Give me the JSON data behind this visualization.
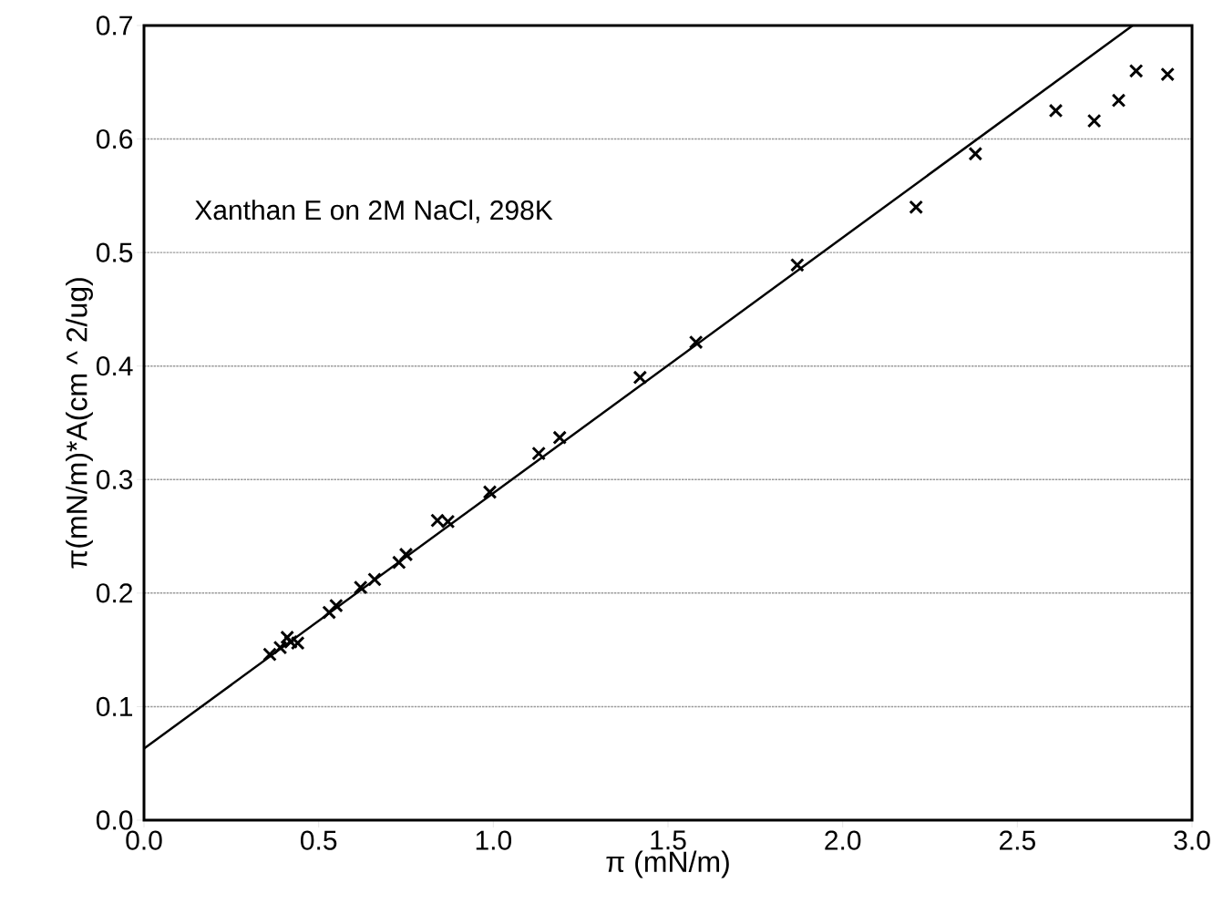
{
  "chart_data": {
    "type": "scatter",
    "xlabel": "π (mN/m)",
    "ylabel": "π(mN/m)*A(cm ^ 2/ug)",
    "annotations": [
      "Xanthan E on 2M NaCl, 298K"
    ],
    "xlim": [
      0,
      3.0
    ],
    "ylim": [
      0,
      0.7
    ],
    "xticks": [
      {
        "value": 0,
        "label": "0.0"
      },
      0.5,
      {
        "value": 1,
        "label": "1.0"
      },
      1.5,
      {
        "value": 2,
        "label": "2.0"
      },
      2.5,
      {
        "value": 3,
        "label": "3.0"
      }
    ],
    "yticks": [
      {
        "value": 0,
        "label": "0.0"
      },
      0.1,
      0.2,
      0.3,
      0.4,
      0.5,
      0.6,
      0.7
    ],
    "grid": "y",
    "series": [
      {
        "color": "#000000",
        "marker": "cross",
        "x": [
          0.36,
          0.39,
          0.41,
          0.42,
          0.44,
          0.53,
          0.55,
          0.62,
          0.66,
          0.73,
          0.75,
          0.84,
          0.87,
          0.99,
          1.13,
          1.19,
          1.42,
          1.58,
          1.87,
          2.21,
          2.38,
          2.61,
          2.72,
          2.79,
          2.84,
          2.93
        ],
        "values": [
          0.146,
          0.152,
          0.161,
          0.157,
          0.156,
          0.183,
          0.189,
          0.205,
          0.212,
          0.227,
          0.234,
          0.264,
          0.263,
          0.289,
          0.323,
          0.337,
          0.39,
          0.421,
          0.489,
          0.54,
          0.587,
          0.625,
          0.616,
          0.634,
          0.66,
          0.657
        ]
      },
      {
        "type": "line",
        "color": "#000000",
        "line_style": "solid",
        "x": [
          0,
          2.83
        ],
        "values": [
          0.063,
          0.7
        ]
      }
    ]
  }
}
